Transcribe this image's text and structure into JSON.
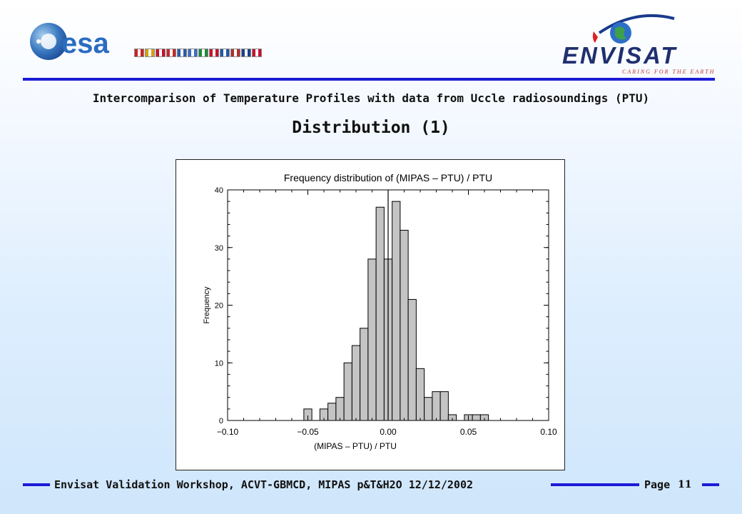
{
  "header": {
    "left_logo": {
      "icon": "esa-logo",
      "text": "esa",
      "flag_colors": [
        "#cc2222",
        "#d4a018",
        "#c8102e",
        "#c62828",
        "#2a5caa",
        "#3a6fc2",
        "#1e8a3c",
        "#c8102e",
        "#1e5aa8",
        "#b03030",
        "#1e3f8c",
        "#c8102e"
      ]
    },
    "right_logo": {
      "icon": "envisat-logo",
      "name": "ENVISAT",
      "tagline": "CARING FOR THE EARTH"
    },
    "rule_color": "#1c1cd6"
  },
  "subtitle": "Intercomparison of Temperature Profiles with data from Uccle radiosoundings (PTU)",
  "title": "Distribution (1)",
  "chart_data": {
    "type": "bar",
    "title": "Frequency distribution of (MIPAS – PTU) / PTU",
    "xlabel": "(MIPAS – PTU) / PTU",
    "ylabel": "Frequency",
    "xlim": [
      -0.1,
      0.1
    ],
    "ylim": [
      0,
      40
    ],
    "x_ticks": [
      "−0.10",
      "−0.05",
      "0.00",
      "0.05",
      "0.10"
    ],
    "x_tick_values": [
      -0.1,
      -0.05,
      0.0,
      0.05,
      0.1
    ],
    "y_ticks": [
      "0",
      "10",
      "20",
      "30",
      "40"
    ],
    "y_tick_values": [
      0,
      10,
      20,
      30,
      40
    ],
    "bin_width": 0.005,
    "bin_starts": [
      -0.0525,
      -0.0475,
      -0.0425,
      -0.0375,
      -0.0325,
      -0.0275,
      -0.0225,
      -0.0175,
      -0.0125,
      -0.0075,
      -0.0025,
      0.0025,
      0.0075,
      0.0125,
      0.0175,
      0.0225,
      0.0275,
      0.0325,
      0.0375,
      0.0425,
      0.0475,
      0.0525,
      0.0575
    ],
    "values": [
      2,
      0,
      2,
      3,
      4,
      10,
      13,
      16,
      28,
      37,
      28,
      38,
      33,
      21,
      9,
      4,
      5,
      5,
      1,
      0,
      1,
      1,
      1
    ],
    "reference_line_x": 0.0,
    "bar_color": "#c4c4c4",
    "grid": false
  },
  "footer": {
    "text": "Envisat Validation Workshop, ACVT-GBMCD,  MIPAS p&T&H2O 12/12/2002",
    "page_label": "Page",
    "page_number": "11"
  }
}
